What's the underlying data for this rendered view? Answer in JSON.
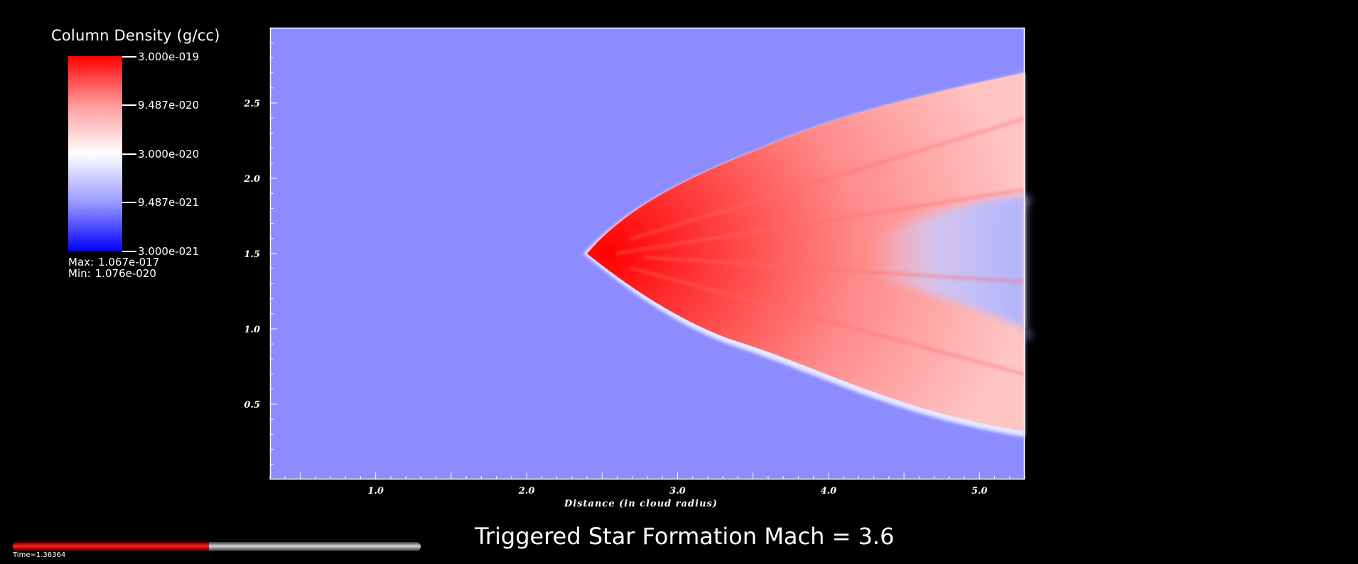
{
  "legend": {
    "title": "Column Density (g/cc)",
    "ticks": [
      "3.000e-019",
      "9.487e-020",
      "3.000e-020",
      "9.487e-021",
      "3.000e-021"
    ],
    "max_label": "Max:",
    "max_value": "1.067e-017",
    "min_label": "Min:",
    "min_value": "1.076e-020",
    "colors": {
      "high": "#ff0000",
      "mid": "#ffffff",
      "low": "#0000ff",
      "background_field": "#8c8cff"
    }
  },
  "caption": "Triggered Star Formation Mach = 3.6",
  "time": {
    "label": "Time=1.36364",
    "progress": 0.48
  },
  "chart_data": {
    "type": "heatmap",
    "title": "",
    "xlabel": "Distance (in cloud radius)",
    "ylabel": "",
    "x_ticks": [
      "1.0",
      "2.0",
      "3.0",
      "4.0",
      "5.0"
    ],
    "x_tick_values": [
      1.0,
      2.0,
      3.0,
      4.0,
      5.0
    ],
    "y_ticks": [
      "0.5",
      "1.0",
      "1.5",
      "2.0",
      "2.5"
    ],
    "y_tick_values": [
      0.5,
      1.0,
      1.5,
      2.0,
      2.5
    ],
    "xlim": [
      0.3,
      5.3
    ],
    "ylim": [
      0.0,
      3.0
    ],
    "colormap": "blue-white-red",
    "color_range": [
      3e-21,
      3e-19
    ],
    "feature": {
      "description_values": {
        "apex": [
          2.4,
          1.5
        ],
        "upper_edge_at_xmax": 2.7,
        "lower_edge_at_xmax": 0.32
      }
    }
  }
}
